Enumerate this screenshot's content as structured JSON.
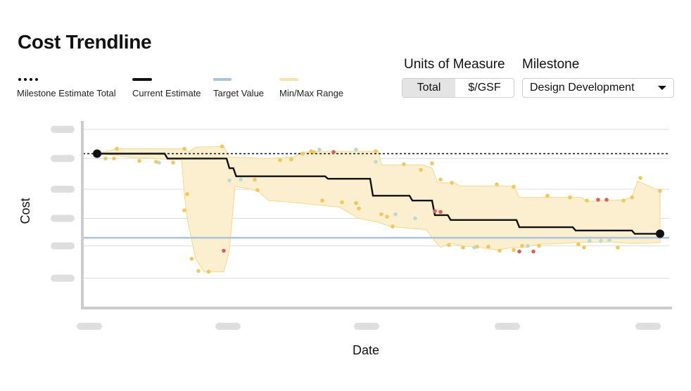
{
  "title": "Cost Trendline",
  "legend": [
    {
      "label": "Milestone Estimate Total",
      "style": "dotted",
      "color": "#111111"
    },
    {
      "label": "Current Estimate",
      "style": "solid",
      "color": "#111111"
    },
    {
      "label": "Target Value",
      "style": "solid",
      "color": "#a9c4df"
    },
    {
      "label": "Min/Max Range",
      "style": "solid",
      "color": "#f7e3ad"
    }
  ],
  "controls": {
    "units_label": "Units of Measure",
    "units_options": [
      "Total",
      "$/GSF"
    ],
    "units_selected": "Total",
    "milestone_label": "Milestone",
    "milestone_value": "Design Development"
  },
  "colors": {
    "grid": "#dddddd",
    "axis": "#cccccc",
    "range_fill": "#fbefcf",
    "range_stroke": "#f2d98d",
    "current": "#111111",
    "target": "#a9c4df",
    "dot_yellow": "#f2c75c",
    "dot_blue": "#b9dbd3",
    "dot_red": "#d9605f",
    "tick_placeholder": "#dedede"
  },
  "chart_data": {
    "type": "line",
    "xlabel": "Date",
    "ylabel": "Cost",
    "xlim": [
      0,
      100
    ],
    "ylim": [
      0,
      100
    ],
    "x_ticks": [
      0,
      25,
      50,
      75,
      100
    ],
    "y_ticks": [
      8,
      28,
      45,
      63,
      82,
      100
    ],
    "milestone_estimate": 85,
    "target": 33,
    "current_estimate": [
      [
        0,
        85
      ],
      [
        12,
        85
      ],
      [
        12.5,
        82
      ],
      [
        23,
        82
      ],
      [
        23.5,
        76
      ],
      [
        24.2,
        76
      ],
      [
        24.7,
        71
      ],
      [
        40.5,
        71
      ],
      [
        41,
        69.5
      ],
      [
        48.5,
        69.5
      ],
      [
        49,
        59
      ],
      [
        55.5,
        59
      ],
      [
        56,
        56
      ],
      [
        59.5,
        56
      ],
      [
        60,
        47
      ],
      [
        62.3,
        47
      ],
      [
        62.8,
        44
      ],
      [
        74.5,
        44
      ],
      [
        75,
        39.5
      ],
      [
        84.5,
        39.5
      ],
      [
        85,
        37.5
      ],
      [
        95,
        37.5
      ],
      [
        95.5,
        35.5
      ],
      [
        100,
        35.5
      ]
    ],
    "range_upper": [
      [
        0,
        85
      ],
      [
        3.5,
        88
      ],
      [
        15.5,
        88
      ],
      [
        16.3,
        86
      ],
      [
        17.5,
        89
      ],
      [
        22.5,
        89.5
      ],
      [
        23.5,
        83
      ],
      [
        30,
        82
      ],
      [
        35,
        83
      ],
      [
        36.5,
        86
      ],
      [
        40,
        86.5
      ],
      [
        50,
        86.5
      ],
      [
        50.5,
        78
      ],
      [
        58,
        78
      ],
      [
        59.5,
        76
      ],
      [
        60.5,
        67
      ],
      [
        63.5,
        67
      ],
      [
        64.5,
        65
      ],
      [
        72.5,
        65
      ],
      [
        74,
        65
      ],
      [
        75,
        58
      ],
      [
        86,
        58
      ],
      [
        87,
        55.5
      ],
      [
        93.5,
        56.5
      ],
      [
        95,
        58
      ],
      [
        96,
        68
      ],
      [
        100,
        62
      ]
    ],
    "range_lower": [
      [
        100,
        30
      ],
      [
        95,
        29.5
      ],
      [
        91,
        30.5
      ],
      [
        85,
        30
      ],
      [
        80,
        29
      ],
      [
        78.5,
        29
      ],
      [
        76,
        27
      ],
      [
        74,
        27
      ],
      [
        71,
        25.5
      ],
      [
        68,
        27
      ],
      [
        65,
        28
      ],
      [
        63.5,
        29
      ],
      [
        62.5,
        29.5
      ],
      [
        61,
        27
      ],
      [
        59.5,
        33
      ],
      [
        58.5,
        38
      ],
      [
        55,
        39
      ],
      [
        52,
        40
      ],
      [
        50,
        42.5
      ],
      [
        46.5,
        45
      ],
      [
        43,
        52
      ],
      [
        40,
        53
      ],
      [
        36,
        54.5
      ],
      [
        30.5,
        56
      ],
      [
        28.5,
        62
      ],
      [
        24.5,
        65
      ],
      [
        23.5,
        25
      ],
      [
        22.5,
        12
      ],
      [
        21,
        12
      ],
      [
        19,
        12
      ],
      [
        17.5,
        20
      ],
      [
        16,
        45
      ],
      [
        15.5,
        60
      ],
      [
        15,
        81
      ],
      [
        10,
        82
      ],
      [
        5,
        83
      ],
      [
        1,
        85
      ],
      [
        0,
        85
      ]
    ],
    "dots_yellow": [
      [
        3.5,
        88
      ],
      [
        1.5,
        82
      ],
      [
        3,
        82
      ],
      [
        7.5,
        80.5
      ],
      [
        10.5,
        80
      ],
      [
        13.5,
        79.5
      ],
      [
        15.5,
        88
      ],
      [
        22.2,
        89.5
      ],
      [
        16,
        60
      ],
      [
        15.5,
        50
      ],
      [
        16.8,
        20
      ],
      [
        18,
        12.5
      ],
      [
        19.8,
        12
      ],
      [
        28,
        69
      ],
      [
        28.5,
        62.5
      ],
      [
        32.5,
        81
      ],
      [
        34.5,
        81.5
      ],
      [
        36.5,
        85
      ],
      [
        38,
        86.5
      ],
      [
        38.5,
        86
      ],
      [
        49.5,
        86.5
      ],
      [
        54.5,
        78.5
      ],
      [
        59.5,
        79
      ],
      [
        57.5,
        75
      ],
      [
        40,
        56
      ],
      [
        43.5,
        55
      ],
      [
        46,
        54.5
      ],
      [
        46.5,
        51
      ],
      [
        50.5,
        47.5
      ],
      [
        51.5,
        46
      ],
      [
        52.5,
        40
      ],
      [
        62.5,
        28.5
      ],
      [
        65,
        27
      ],
      [
        67.5,
        27.5
      ],
      [
        69.5,
        27.5
      ],
      [
        71.5,
        25
      ],
      [
        74,
        25.5
      ],
      [
        75.5,
        28
      ],
      [
        78.5,
        28
      ],
      [
        85.5,
        29
      ],
      [
        86.5,
        27
      ],
      [
        92.5,
        27
      ],
      [
        61,
        69
      ],
      [
        63,
        67
      ],
      [
        71,
        66
      ],
      [
        74,
        64.5
      ],
      [
        80,
        59
      ],
      [
        84,
        58
      ],
      [
        87,
        56
      ],
      [
        89,
        56.5
      ],
      [
        93.5,
        56
      ],
      [
        95,
        58
      ],
      [
        96.5,
        70
      ],
      [
        100,
        62
      ]
    ],
    "dots_blue": [
      [
        11,
        79.5
      ],
      [
        23.5,
        68.5
      ],
      [
        25.5,
        69
      ],
      [
        39.5,
        87.5
      ],
      [
        46,
        87.5
      ],
      [
        49.5,
        80
      ],
      [
        53,
        47.5
      ],
      [
        56.5,
        45
      ],
      [
        67,
        27
      ],
      [
        76.5,
        28
      ],
      [
        87.5,
        31
      ],
      [
        89.5,
        31
      ],
      [
        91,
        31.5
      ]
    ],
    "dots_red": [
      [
        22.5,
        25
      ],
      [
        42,
        86
      ],
      [
        60,
        49.5
      ],
      [
        61,
        49
      ],
      [
        75,
        24.5
      ],
      [
        77.5,
        24.5
      ],
      [
        89,
        56.5
      ],
      [
        90.5,
        56.5
      ]
    ]
  }
}
